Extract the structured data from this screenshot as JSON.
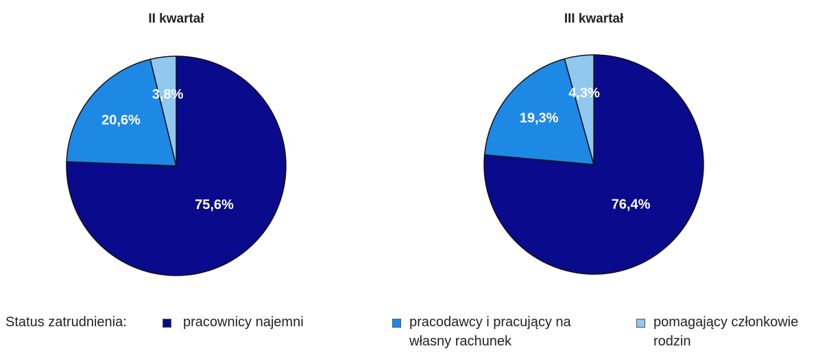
{
  "chart_data": [
    {
      "type": "pie",
      "title": "II kwartał",
      "categories": [
        "pracownicy najemni",
        "pracodawcy i pracujący na własny rachunek",
        "pomagający członkowie rodzin"
      ],
      "values": [
        75.6,
        20.6,
        3.8
      ],
      "value_labels": [
        "75,6%",
        "20,6%",
        "3,8%"
      ],
      "colors": [
        "#0a0a8c",
        "#1e88e5",
        "#90c8f0"
      ]
    },
    {
      "type": "pie",
      "title": "III kwartał",
      "categories": [
        "pracownicy najemni",
        "pracodawcy i pracujący na własny rachunek",
        "pomagający członkowie rodzin"
      ],
      "values": [
        76.4,
        19.3,
        4.3
      ],
      "value_labels": [
        "76,4%",
        "19,3%",
        "4,3%"
      ],
      "colors": [
        "#0a0a8c",
        "#1e88e5",
        "#90c8f0"
      ]
    }
  ],
  "legend": {
    "title": "Status zatrudnienia:"
  }
}
